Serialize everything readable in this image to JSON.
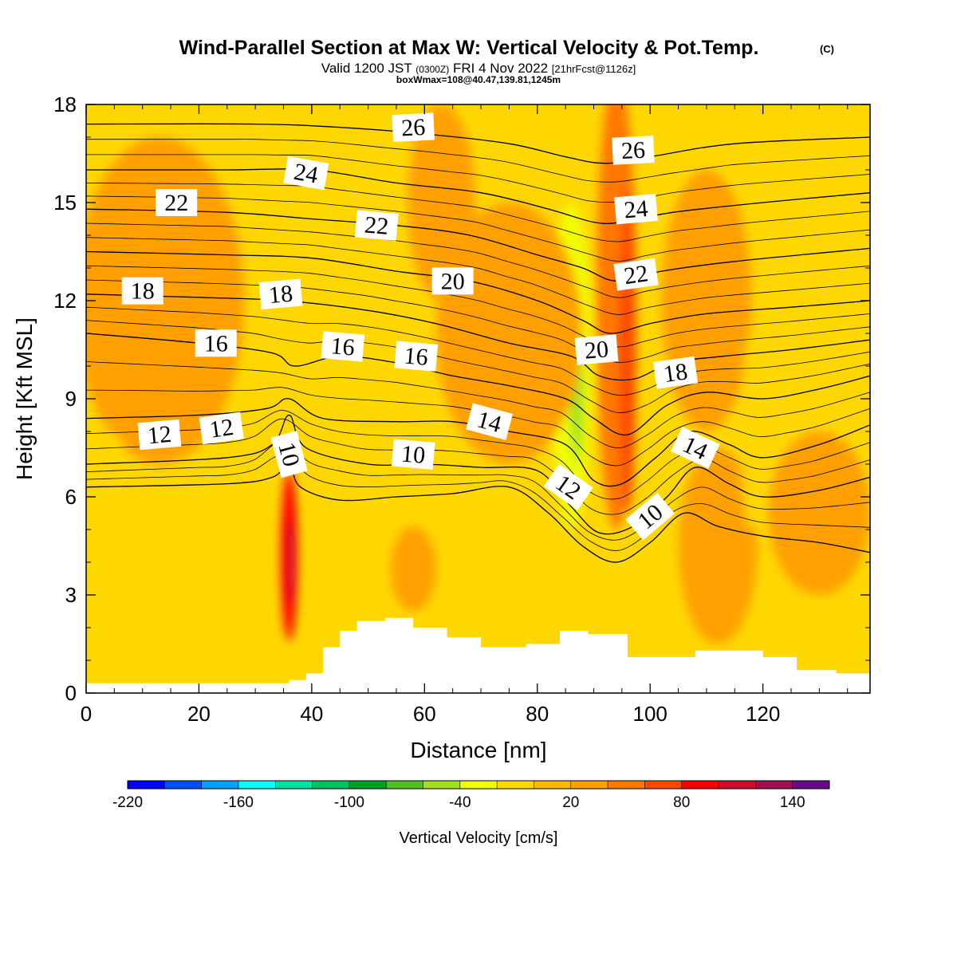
{
  "header": {
    "title": "Wind-Parallel Section at Max W: Vertical Velocity & Pot.Temp.",
    "copyright": "(C)",
    "valid_prefix": "Valid 1200 JST",
    "valid_z": "(0300Z)",
    "valid_date": "FRI 4 Nov 2022",
    "forecast": "[21hrFcst@1126z]",
    "boxwmax": "boxWmax=108@40.47,139.81,1245m"
  },
  "chart_data": {
    "type": "heatmap",
    "xlabel": "Distance [nm]",
    "ylabel": "Height [Kft MSL]",
    "xlim": [
      0,
      139
    ],
    "ylim": [
      0,
      18
    ],
    "xticks": [
      0,
      20,
      40,
      60,
      80,
      100,
      120
    ],
    "yticks": [
      0,
      3,
      6,
      9,
      12,
      15,
      18
    ],
    "background_color": "#ffd700",
    "colorbar": {
      "label": "Vertical Velocity [cm/s]",
      "min": -220,
      "max": 160,
      "step": 20,
      "tick_labels": [
        "-220",
        "-160",
        "-100",
        "-40",
        "20",
        "80",
        "140"
      ],
      "colors": [
        "#0000ff",
        "#0050ff",
        "#00a0ff",
        "#00ffff",
        "#00e0a0",
        "#00c060",
        "#00a020",
        "#50c020",
        "#a0e020",
        "#f0ff00",
        "#ffd700",
        "#ffb800",
        "#ffa000",
        "#ff7800",
        "#ff4800",
        "#ff0000",
        "#d0102a",
        "#a01050",
        "#6a0a8a"
      ]
    },
    "velocity_features": [
      {
        "x": 36,
        "z": 4.2,
        "rx": 1.5,
        "rz": 2.6,
        "value": 80
      },
      {
        "x": 36.3,
        "z": 4.0,
        "rx": 0.7,
        "rz": 1.3,
        "value": 100
      },
      {
        "x": 94,
        "z": 12,
        "rx": 3.5,
        "rz": 7.0,
        "value": 40
      },
      {
        "x": 96,
        "z": 10.5,
        "rx": 1.5,
        "rz": 5.0,
        "value": 60
      },
      {
        "x": 86,
        "z": 10,
        "rx": 3.5,
        "rz": 5.0,
        "value": -40
      },
      {
        "x": 87,
        "z": 9.5,
        "rx": 1.2,
        "rz": 2.5,
        "value": -60
      },
      {
        "x": 13,
        "z": 12,
        "rx": 15,
        "rz": 5,
        "value": 20
      },
      {
        "x": 75,
        "z": 11,
        "rx": 13,
        "rz": 4,
        "value": 20
      },
      {
        "x": 110,
        "z": 12,
        "rx": 8,
        "rz": 4,
        "value": 20
      },
      {
        "x": 63,
        "z": 15,
        "rx": 6,
        "rz": 3,
        "value": 20
      },
      {
        "x": 58,
        "z": 3.8,
        "rx": 4,
        "rz": 1.3,
        "value": 20
      },
      {
        "x": 112,
        "z": 4.5,
        "rx": 7,
        "rz": 3,
        "value": 20
      },
      {
        "x": 130,
        "z": 5.5,
        "rx": 9,
        "rz": 2.5,
        "value": 20
      },
      {
        "x": 4,
        "z": 4,
        "rx": 6,
        "rz": 4,
        "value": -20
      },
      {
        "x": 72,
        "z": 4,
        "rx": 3,
        "rz": 1.8,
        "value": -20
      },
      {
        "x": 118,
        "z": 8,
        "rx": 2,
        "rz": 3,
        "value": -20
      },
      {
        "x": 128,
        "z": 16,
        "rx": 2.5,
        "rz": 2,
        "value": -20
      }
    ],
    "terrain": [
      [
        0,
        0.3
      ],
      [
        33,
        0.3
      ],
      [
        36,
        0.4
      ],
      [
        39,
        0.6
      ],
      [
        42,
        1.4
      ],
      [
        45,
        1.9
      ],
      [
        48,
        2.2
      ],
      [
        53,
        2.3
      ],
      [
        58,
        2.0
      ],
      [
        64,
        1.7
      ],
      [
        70,
        1.4
      ],
      [
        78,
        1.5
      ],
      [
        84,
        1.9
      ],
      [
        89,
        1.8
      ],
      [
        96,
        1.1
      ],
      [
        104,
        1.1
      ],
      [
        108,
        1.3
      ],
      [
        114,
        1.3
      ],
      [
        120,
        1.1
      ],
      [
        126,
        0.7
      ],
      [
        133,
        0.6
      ],
      [
        139,
        0.3
      ]
    ],
    "theta_contours": [
      {
        "value": 10,
        "points": [
          [
            0,
            6.3
          ],
          [
            25,
            6.4
          ],
          [
            33,
            6.6
          ],
          [
            36,
            7.0
          ],
          [
            38,
            6.3
          ],
          [
            45,
            5.9
          ],
          [
            55,
            6.0
          ],
          [
            65,
            6.1
          ],
          [
            75,
            6.3
          ],
          [
            82,
            5.5
          ],
          [
            88,
            4.5
          ],
          [
            94,
            4.0
          ],
          [
            100,
            4.6
          ],
          [
            106,
            5.5
          ],
          [
            112,
            5.1
          ],
          [
            120,
            4.8
          ],
          [
            130,
            4.6
          ],
          [
            139,
            4.3
          ]
        ]
      },
      {
        "value": 12,
        "points": [
          [
            0,
            7.0
          ],
          [
            25,
            7.2
          ],
          [
            33,
            7.6
          ],
          [
            36,
            8.5
          ],
          [
            39,
            7.5
          ],
          [
            50,
            7.0
          ],
          [
            60,
            7.0
          ],
          [
            70,
            6.9
          ],
          [
            80,
            6.8
          ],
          [
            86,
            5.7
          ],
          [
            91,
            4.9
          ],
          [
            97,
            5.1
          ],
          [
            103,
            6.0
          ],
          [
            108,
            6.9
          ],
          [
            114,
            6.4
          ],
          [
            120,
            6.0
          ],
          [
            130,
            6.2
          ],
          [
            139,
            6.6
          ]
        ]
      },
      {
        "value": 14,
        "points": [
          [
            0,
            8.4
          ],
          [
            20,
            8.5
          ],
          [
            32,
            8.7
          ],
          [
            36,
            9.0
          ],
          [
            42,
            8.4
          ],
          [
            55,
            8.3
          ],
          [
            65,
            8.3
          ],
          [
            75,
            8.0
          ],
          [
            85,
            7.6
          ],
          [
            90,
            6.5
          ],
          [
            95,
            6.4
          ],
          [
            101,
            7.2
          ],
          [
            107,
            8.0
          ],
          [
            114,
            7.6
          ],
          [
            120,
            7.2
          ],
          [
            130,
            7.6
          ],
          [
            139,
            8.2
          ]
        ]
      },
      {
        "value": 16,
        "points": [
          [
            0,
            11.0
          ],
          [
            20,
            10.7
          ],
          [
            33,
            10.4
          ],
          [
            37,
            10.0
          ],
          [
            45,
            10.3
          ],
          [
            55,
            10.1
          ],
          [
            65,
            9.7
          ],
          [
            75,
            9.4
          ],
          [
            85,
            9.0
          ],
          [
            90,
            8.4
          ],
          [
            96,
            7.9
          ],
          [
            103,
            8.8
          ],
          [
            110,
            9.2
          ],
          [
            120,
            9.0
          ],
          [
            130,
            9.3
          ],
          [
            139,
            9.7
          ]
        ]
      },
      {
        "value": 18,
        "points": [
          [
            0,
            12.2
          ],
          [
            20,
            12.1
          ],
          [
            35,
            12.0
          ],
          [
            50,
            11.7
          ],
          [
            62,
            11.3
          ],
          [
            75,
            10.7
          ],
          [
            86,
            10.3
          ],
          [
            91,
            9.7
          ],
          [
            97,
            9.6
          ],
          [
            104,
            10.1
          ],
          [
            113,
            10.3
          ],
          [
            125,
            10.5
          ],
          [
            139,
            10.8
          ]
        ]
      },
      {
        "value": 20,
        "points": [
          [
            0,
            13.5
          ],
          [
            25,
            13.4
          ],
          [
            40,
            13.3
          ],
          [
            55,
            12.9
          ],
          [
            68,
            12.6
          ],
          [
            80,
            12.0
          ],
          [
            88,
            11.4
          ],
          [
            93,
            11.0
          ],
          [
            100,
            11.3
          ],
          [
            110,
            11.6
          ],
          [
            125,
            11.8
          ],
          [
            139,
            12.0
          ]
        ]
      },
      {
        "value": 22,
        "points": [
          [
            0,
            14.8
          ],
          [
            25,
            14.7
          ],
          [
            40,
            14.5
          ],
          [
            55,
            14.3
          ],
          [
            68,
            14.0
          ],
          [
            80,
            13.4
          ],
          [
            88,
            13.0
          ],
          [
            94,
            12.6
          ],
          [
            102,
            12.9
          ],
          [
            115,
            13.2
          ],
          [
            139,
            13.6
          ]
        ]
      },
      {
        "value": 24,
        "points": [
          [
            0,
            16.0
          ],
          [
            25,
            16.0
          ],
          [
            40,
            16.0
          ],
          [
            55,
            15.6
          ],
          [
            70,
            15.3
          ],
          [
            82,
            14.8
          ],
          [
            90,
            14.4
          ],
          [
            95,
            14.4
          ],
          [
            104,
            14.7
          ],
          [
            120,
            15.0
          ],
          [
            139,
            15.3
          ]
        ]
      },
      {
        "value": 26,
        "points": [
          [
            0,
            17.4
          ],
          [
            30,
            17.4
          ],
          [
            45,
            17.3
          ],
          [
            60,
            17.1
          ],
          [
            75,
            16.8
          ],
          [
            85,
            16.4
          ],
          [
            92,
            16.2
          ],
          [
            100,
            16.4
          ],
          [
            115,
            16.8
          ],
          [
            139,
            17.0
          ]
        ]
      }
    ],
    "contour_labels": [
      {
        "text": "10",
        "x": 36,
        "z": 7.3,
        "angle": 75
      },
      {
        "text": "10",
        "x": 58,
        "z": 7.3,
        "angle": 5
      },
      {
        "text": "10",
        "x": 100,
        "z": 5.4,
        "angle": -40
      },
      {
        "text": "12",
        "x": 13,
        "z": 7.9,
        "angle": -5
      },
      {
        "text": "12",
        "x": 24,
        "z": 8.1,
        "angle": -8
      },
      {
        "text": "12",
        "x": 85.5,
        "z": 6.3,
        "angle": 35
      },
      {
        "text": "14",
        "x": 71.5,
        "z": 8.3,
        "angle": 15
      },
      {
        "text": "14",
        "x": 108,
        "z": 7.5,
        "angle": 25
      },
      {
        "text": "16",
        "x": 23,
        "z": 10.7,
        "angle": 0
      },
      {
        "text": "16",
        "x": 45.5,
        "z": 10.6,
        "angle": 5
      },
      {
        "text": "16",
        "x": 58.5,
        "z": 10.3,
        "angle": 5
      },
      {
        "text": "18",
        "x": 10,
        "z": 12.3,
        "angle": 0
      },
      {
        "text": "18",
        "x": 34.5,
        "z": 12.2,
        "angle": -5
      },
      {
        "text": "18",
        "x": 104.5,
        "z": 9.8,
        "angle": -8
      },
      {
        "text": "20",
        "x": 65,
        "z": 12.6,
        "angle": 0
      },
      {
        "text": "20",
        "x": 90.5,
        "z": 10.5,
        "angle": -5
      },
      {
        "text": "22",
        "x": 16,
        "z": 15.0,
        "angle": 0
      },
      {
        "text": "22",
        "x": 51.5,
        "z": 14.3,
        "angle": 5
      },
      {
        "text": "22",
        "x": 97.5,
        "z": 12.8,
        "angle": -8
      },
      {
        "text": "24",
        "x": 39,
        "z": 15.9,
        "angle": 10
      },
      {
        "text": "24",
        "x": 97.5,
        "z": 14.8,
        "angle": -5
      },
      {
        "text": "26",
        "x": 58,
        "z": 17.3,
        "angle": -3
      },
      {
        "text": "26",
        "x": 97,
        "z": 16.6,
        "angle": -3
      }
    ]
  }
}
